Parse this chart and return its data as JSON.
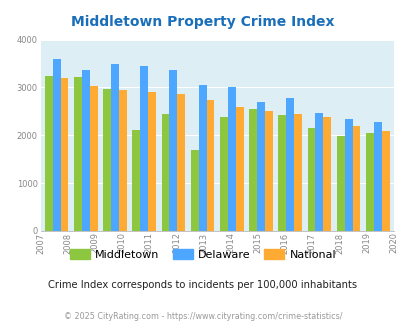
{
  "title": "Middletown Property Crime Index",
  "all_years": [
    2007,
    2008,
    2009,
    2010,
    2011,
    2012,
    2013,
    2014,
    2015,
    2016,
    2017,
    2018,
    2019,
    2020
  ],
  "data_years": [
    2008,
    2009,
    2010,
    2011,
    2012,
    2013,
    2014,
    2015,
    2016,
    2017,
    2018,
    2019
  ],
  "middletown": [
    3240,
    3210,
    2970,
    2120,
    2450,
    1700,
    2380,
    2560,
    2430,
    2160,
    1980,
    2040
  ],
  "delaware": [
    3600,
    3360,
    3480,
    3450,
    3360,
    3060,
    3000,
    2700,
    2770,
    2470,
    2340,
    2280
  ],
  "national": [
    3200,
    3040,
    2950,
    2910,
    2870,
    2730,
    2600,
    2510,
    2450,
    2380,
    2200,
    2100
  ],
  "middletown_color": "#8dc63f",
  "delaware_color": "#4da6ff",
  "national_color": "#ffaa33",
  "bg_color": "#ddeef5",
  "fig_bg": "#ffffff",
  "ylim": [
    0,
    4000
  ],
  "yticks": [
    0,
    1000,
    2000,
    3000,
    4000
  ],
  "subtitle": "Crime Index corresponds to incidents per 100,000 inhabitants",
  "footer": "© 2025 CityRating.com - https://www.cityrating.com/crime-statistics/",
  "title_color": "#1a6fba",
  "subtitle_color": "#222222",
  "footer_color": "#999999",
  "legend_labels": [
    "Middletown",
    "Delaware",
    "National"
  ]
}
